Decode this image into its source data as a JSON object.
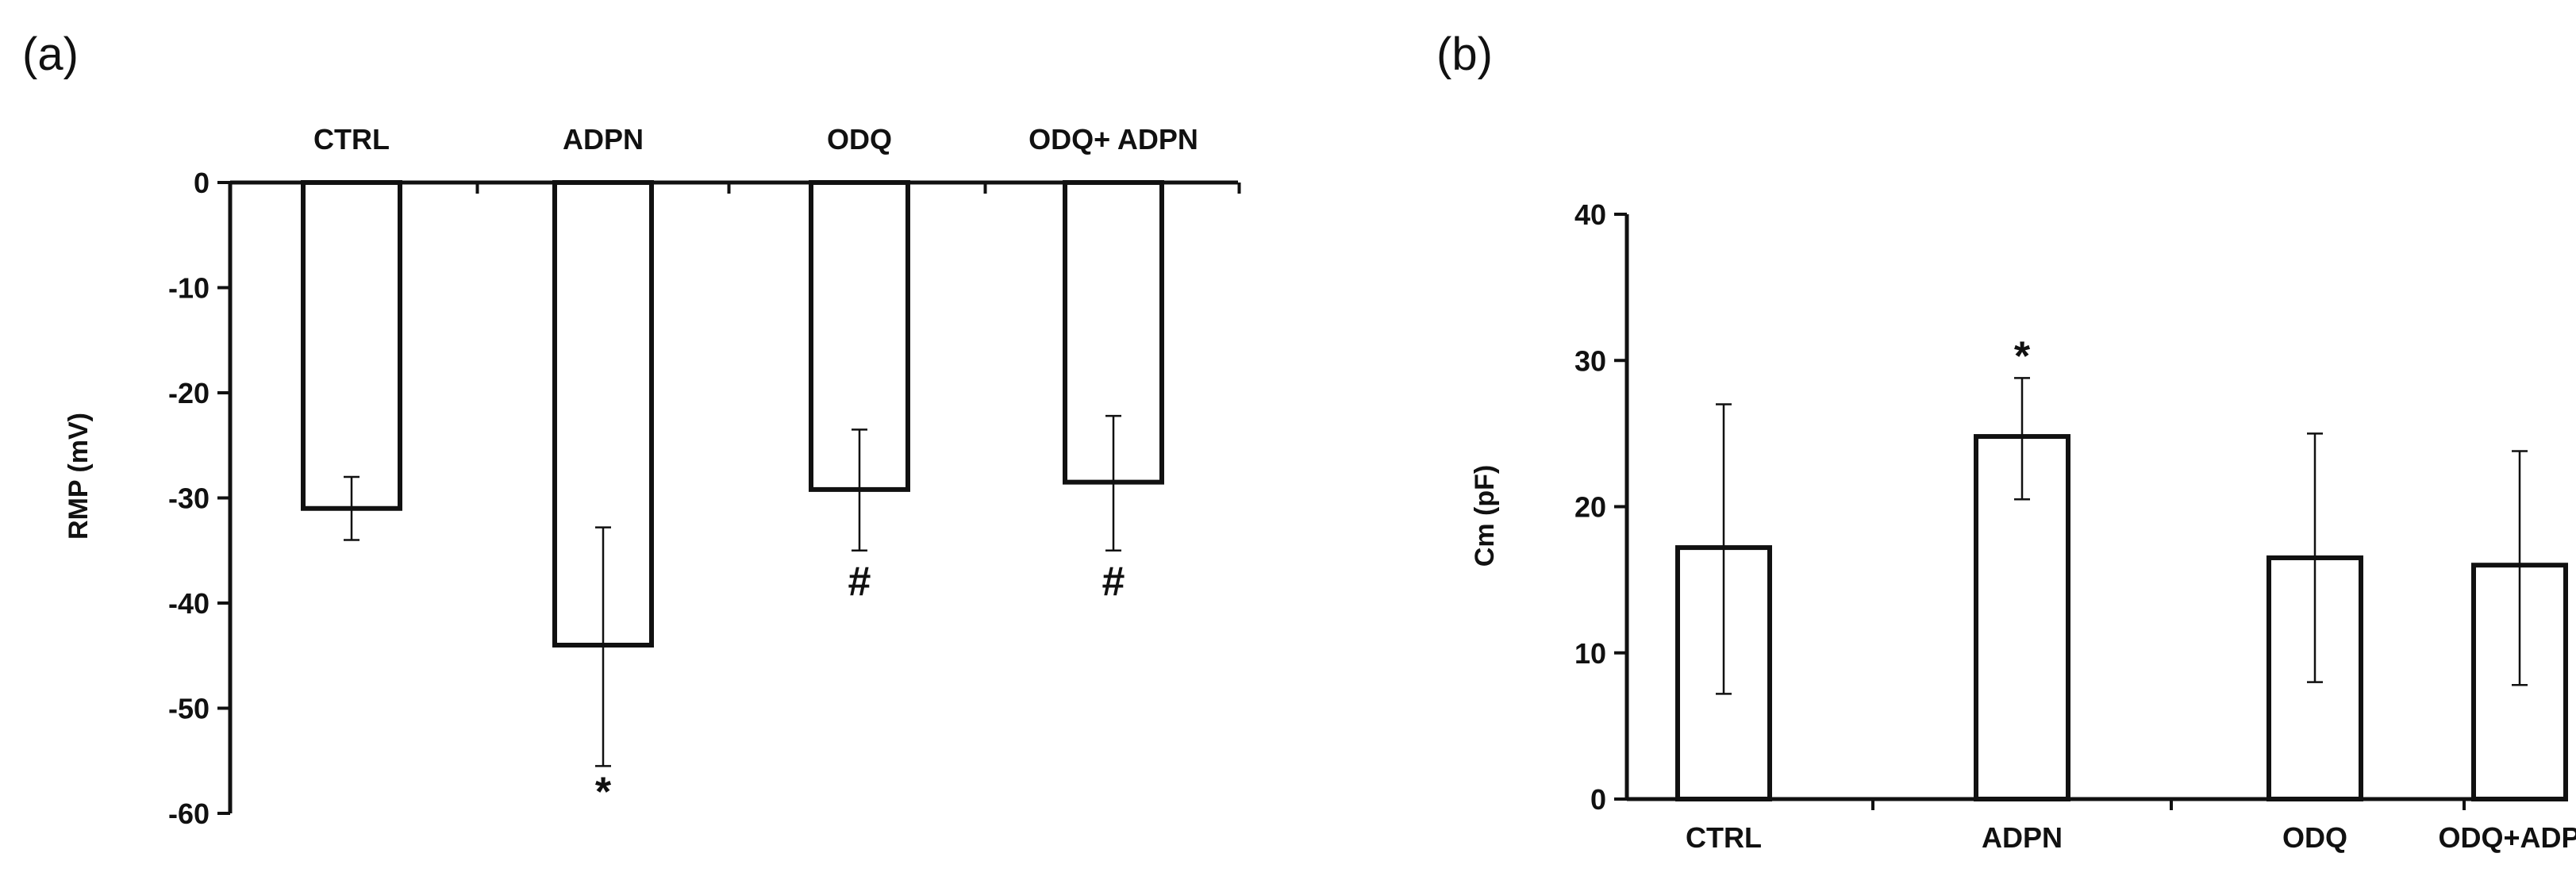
{
  "chart_data": [
    {
      "panel_label": "(a)",
      "type": "bar",
      "title": "",
      "xlabel": "",
      "ylabel": "RMP (mV)",
      "ylim": [
        -60,
        0
      ],
      "yticks": [
        0,
        -10,
        -20,
        -30,
        -40,
        -50,
        -60
      ],
      "categories": [
        "CTRL",
        "ADPN",
        "ODQ",
        "ODQ+ ADPN"
      ],
      "category_axis_position": "top",
      "values": [
        -31,
        -44,
        -29.2,
        -28.5
      ],
      "error_lower": [
        -34,
        -55.5,
        -35,
        -35
      ],
      "error_upper": [
        -28,
        -32.8,
        -23.5,
        -22.2
      ],
      "annotations": [
        "",
        "*",
        "#",
        "#"
      ],
      "annotation_position": "below-error-bar",
      "grid": false,
      "legend": "none"
    },
    {
      "panel_label": "(b)",
      "type": "bar",
      "title": "",
      "xlabel": "",
      "ylabel": "Cm (pF)",
      "ylim": [
        0,
        40
      ],
      "yticks": [
        0,
        10,
        20,
        30,
        40
      ],
      "categories": [
        "CTRL",
        "ADPN",
        "ODQ",
        "ODQ+ADPN"
      ],
      "category_axis_position": "bottom",
      "values": [
        17.2,
        24.8,
        16.5,
        16
      ],
      "error_lower": [
        7.2,
        20.5,
        8,
        7.8
      ],
      "error_upper": [
        27,
        28.8,
        25,
        23.8
      ],
      "annotations": [
        "",
        "*",
        "",
        ""
      ],
      "annotation_position": "above-error-bar",
      "grid": false,
      "legend": "none"
    }
  ]
}
